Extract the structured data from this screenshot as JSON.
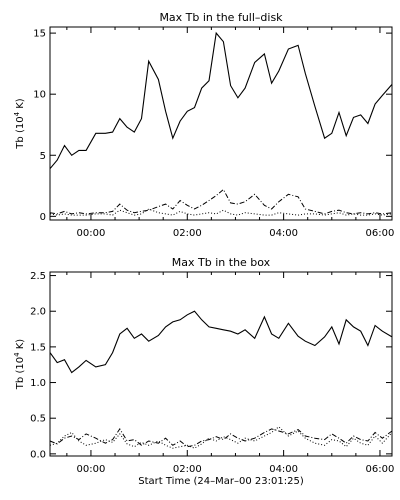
{
  "chart_data": [
    {
      "type": "line",
      "title": "Max Tb in the full–disk",
      "ylabel_main": "Tb (10",
      "ylabel_sup": "4",
      "ylabel_unit": " K)",
      "xlabel": "",
      "x_tick_labels": [
        "00:00",
        "02:00",
        "04:00",
        "06:00"
      ],
      "x_tick_hours": [
        0,
        2,
        4,
        6
      ],
      "xlim_hours": [
        -0.85,
        6.25
      ],
      "y_tick_labels": [
        "0",
        "5",
        "10",
        "15"
      ],
      "y_tick_values": [
        0,
        5,
        10,
        15
      ],
      "ylim": [
        -0.3,
        15.5
      ],
      "x_hours": [
        -0.85,
        -0.7,
        -0.55,
        -0.4,
        -0.25,
        -0.1,
        0.1,
        0.3,
        0.45,
        0.6,
        0.75,
        0.9,
        1.05,
        1.2,
        1.4,
        1.55,
        1.7,
        1.85,
        2.0,
        2.15,
        2.3,
        2.45,
        2.6,
        2.75,
        2.9,
        3.05,
        3.2,
        3.4,
        3.6,
        3.75,
        3.9,
        4.1,
        4.3,
        4.45,
        4.65,
        4.85,
        5.0,
        5.15,
        5.3,
        5.45,
        5.6,
        5.75,
        5.9,
        6.05,
        6.25
      ],
      "series": [
        {
          "style": "solid",
          "values": [
            3.9,
            4.6,
            5.8,
            5.0,
            5.4,
            5.4,
            6.8,
            6.8,
            6.9,
            8.0,
            7.3,
            6.9,
            8.0,
            12.7,
            11.2,
            8.6,
            6.4,
            7.8,
            8.6,
            8.9,
            10.5,
            11.1,
            15.0,
            14.3,
            10.7,
            9.7,
            10.5,
            12.6,
            13.3,
            10.9,
            11.9,
            13.7,
            14.0,
            11.7,
            9.0,
            6.4,
            6.8,
            8.5,
            6.6,
            8.1,
            8.3,
            7.6,
            9.2,
            9.9,
            10.8
          ]
        },
        {
          "style": "dashdot",
          "values": [
            0.3,
            0.2,
            0.4,
            0.2,
            0.3,
            0.2,
            0.3,
            0.3,
            0.4,
            1.0,
            0.5,
            0.3,
            0.4,
            0.5,
            0.8,
            1.0,
            0.6,
            1.3,
            0.9,
            0.6,
            0.9,
            1.3,
            1.7,
            2.2,
            1.1,
            1.0,
            1.2,
            1.8,
            0.9,
            0.6,
            1.2,
            1.8,
            1.6,
            0.6,
            0.4,
            0.2,
            0.4,
            0.5,
            0.3,
            0.2,
            0.3,
            0.2,
            0.3,
            0.2,
            0.3
          ]
        },
        {
          "style": "dotted",
          "values": [
            0.2,
            0.1,
            0.2,
            0.1,
            0.1,
            0.1,
            0.2,
            0.2,
            0.1,
            0.5,
            0.3,
            0.1,
            0.2,
            0.6,
            0.3,
            0.2,
            0.1,
            0.4,
            0.2,
            0.1,
            0.2,
            0.3,
            0.2,
            0.5,
            0.2,
            0.1,
            0.3,
            0.2,
            0.1,
            0.1,
            0.3,
            0.2,
            0.1,
            0.2,
            0.2,
            0.1,
            0.2,
            0.3,
            0.1,
            0.2,
            0.1,
            0.1,
            0.2,
            0.1,
            0.2
          ]
        }
      ]
    },
    {
      "type": "line",
      "title": "Max Tb in the box",
      "ylabel_main": "Tb (10",
      "ylabel_sup": "4",
      "ylabel_unit": " K)",
      "xlabel": "Start Time (24–Mar–00 23:01:25)",
      "x_tick_labels": [
        "00:00",
        "02:00",
        "04:00",
        "06:00"
      ],
      "x_tick_hours": [
        0,
        2,
        4,
        6
      ],
      "xlim_hours": [
        -0.85,
        6.25
      ],
      "y_tick_labels": [
        "0.0",
        "0.5",
        "1.0",
        "1.5",
        "2.0",
        "2.5"
      ],
      "y_tick_values": [
        0.0,
        0.5,
        1.0,
        1.5,
        2.0,
        2.5
      ],
      "ylim": [
        -0.03,
        2.55
      ],
      "x_hours": [
        -0.85,
        -0.7,
        -0.55,
        -0.4,
        -0.25,
        -0.1,
        0.1,
        0.3,
        0.45,
        0.6,
        0.75,
        0.9,
        1.05,
        1.2,
        1.4,
        1.55,
        1.7,
        1.85,
        2.0,
        2.15,
        2.3,
        2.45,
        2.6,
        2.75,
        2.9,
        3.05,
        3.2,
        3.4,
        3.6,
        3.75,
        3.9,
        4.1,
        4.3,
        4.45,
        4.65,
        4.85,
        5.0,
        5.15,
        5.3,
        5.45,
        5.6,
        5.75,
        5.9,
        6.05,
        6.25
      ],
      "series": [
        {
          "style": "solid",
          "values": [
            1.42,
            1.28,
            1.32,
            1.14,
            1.22,
            1.31,
            1.22,
            1.25,
            1.42,
            1.68,
            1.76,
            1.62,
            1.68,
            1.58,
            1.66,
            1.78,
            1.85,
            1.88,
            1.95,
            2.0,
            1.88,
            1.78,
            1.76,
            1.74,
            1.72,
            1.68,
            1.74,
            1.62,
            1.92,
            1.68,
            1.62,
            1.83,
            1.65,
            1.58,
            1.52,
            1.64,
            1.78,
            1.54,
            1.88,
            1.78,
            1.72,
            1.52,
            1.8,
            1.72,
            1.64
          ]
        },
        {
          "style": "dashdot",
          "values": [
            0.18,
            0.14,
            0.22,
            0.25,
            0.2,
            0.28,
            0.22,
            0.15,
            0.2,
            0.35,
            0.18,
            0.2,
            0.12,
            0.18,
            0.15,
            0.22,
            0.12,
            0.18,
            0.1,
            0.12,
            0.18,
            0.2,
            0.24,
            0.2,
            0.28,
            0.22,
            0.18,
            0.22,
            0.3,
            0.35,
            0.32,
            0.28,
            0.34,
            0.25,
            0.22,
            0.2,
            0.28,
            0.22,
            0.15,
            0.25,
            0.2,
            0.18,
            0.3,
            0.22,
            0.32
          ]
        },
        {
          "style": "dotted",
          "values": [
            0.12,
            0.15,
            0.25,
            0.3,
            0.18,
            0.12,
            0.15,
            0.2,
            0.16,
            0.28,
            0.14,
            0.1,
            0.16,
            0.12,
            0.18,
            0.12,
            0.08,
            0.1,
            0.12,
            0.08,
            0.14,
            0.22,
            0.18,
            0.24,
            0.2,
            0.15,
            0.22,
            0.18,
            0.25,
            0.3,
            0.38,
            0.25,
            0.32,
            0.22,
            0.15,
            0.12,
            0.2,
            0.18,
            0.1,
            0.22,
            0.15,
            0.12,
            0.25,
            0.15,
            0.3
          ]
        }
      ]
    }
  ]
}
